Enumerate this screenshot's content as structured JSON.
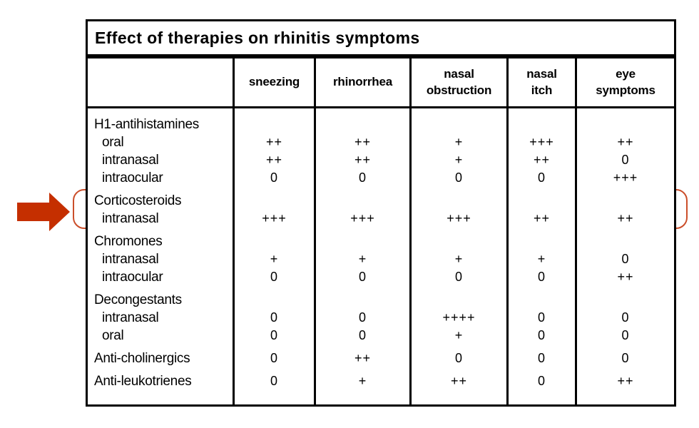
{
  "table": {
    "title": "Effect of therapies on rhinitis symptoms",
    "columns": [
      "sneezing",
      "rhinorrhea",
      "nasal\nobstruction",
      "nasal\nitch",
      "eye\nsymptoms"
    ],
    "rows": [
      {
        "label": "H1-antihistamines",
        "indent": false,
        "group_start": false,
        "values": [
          "",
          "",
          "",
          "",
          ""
        ]
      },
      {
        "label": "oral",
        "indent": true,
        "group_start": false,
        "values": [
          "++",
          "++",
          "+",
          "+++",
          "++"
        ]
      },
      {
        "label": "intranasal",
        "indent": true,
        "group_start": false,
        "values": [
          "++",
          "++",
          "+",
          "++",
          "0"
        ]
      },
      {
        "label": "intraocular",
        "indent": true,
        "group_start": false,
        "values": [
          "0",
          "0",
          "0",
          "0",
          "+++"
        ]
      },
      {
        "label": "Corticosteroids",
        "indent": false,
        "group_start": true,
        "values": [
          "",
          "",
          "",
          "",
          ""
        ]
      },
      {
        "label": "intranasal",
        "indent": true,
        "group_start": false,
        "values": [
          "+++",
          "+++",
          "+++",
          "++",
          "++"
        ]
      },
      {
        "label": "Chromones",
        "indent": false,
        "group_start": true,
        "values": [
          "",
          "",
          "",
          "",
          ""
        ]
      },
      {
        "label": "intranasal",
        "indent": true,
        "group_start": false,
        "values": [
          "+",
          "+",
          "+",
          "+",
          "0"
        ]
      },
      {
        "label": "intraocular",
        "indent": true,
        "group_start": false,
        "values": [
          "0",
          "0",
          "0",
          "0",
          "++"
        ]
      },
      {
        "label": "Decongestants",
        "indent": false,
        "group_start": true,
        "values": [
          "",
          "",
          "",
          "",
          ""
        ]
      },
      {
        "label": "intranasal",
        "indent": true,
        "group_start": false,
        "values": [
          "0",
          "0",
          "++++",
          "0",
          "0"
        ]
      },
      {
        "label": "oral",
        "indent": true,
        "group_start": false,
        "values": [
          "0",
          "0",
          "+",
          "0",
          "0"
        ]
      },
      {
        "label": "Anti-cholinergics",
        "indent": false,
        "group_start": true,
        "values": [
          "0",
          "++",
          "0",
          "0",
          "0"
        ]
      },
      {
        "label": "Anti-leukotrienes",
        "indent": false,
        "group_start": true,
        "values": [
          "0",
          "+",
          "++",
          "0",
          "++"
        ]
      }
    ]
  },
  "annotation": {
    "highlighted_group": "Corticosteroids intranasal",
    "arrow_color": "#c52f00",
    "highlight_border_color": "#cb4e2a"
  }
}
